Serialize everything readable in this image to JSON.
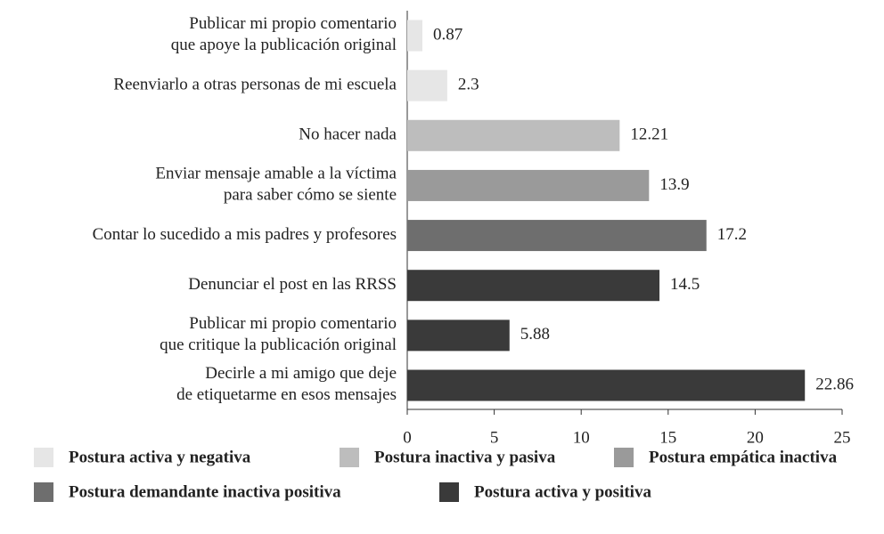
{
  "chart_data": {
    "type": "barh",
    "categories": [
      "Publicar mi propio comentario\nque apoye la publicación original",
      "Reenviarlo a otras personas de mi escuela",
      "No hacer nada",
      "Enviar mensaje amable a la víctima\npara saber cómo se siente",
      "Contar lo sucedido a mis padres y profesores",
      "Denunciar el post en las RRSS",
      "Publicar mi propio comentario\nque critique la publicación original",
      "Decirle a mi amigo que deje\nde etiquetarme en esos mensajes"
    ],
    "series": [
      {
        "name": "Postura activa y negativa",
        "color": "#e6e6e6",
        "values": [
          0.87,
          2.3,
          null,
          null,
          null,
          null,
          null,
          null
        ]
      },
      {
        "name": "Postura inactiva y pasiva",
        "color": "#bdbdbd",
        "values": [
          null,
          null,
          12.21,
          null,
          null,
          null,
          null,
          null
        ]
      },
      {
        "name": "Postura empática inactiva",
        "color": "#9a9a9a",
        "values": [
          null,
          null,
          null,
          13.9,
          null,
          null,
          null,
          null
        ]
      },
      {
        "name": "Postura demandante inactiva positiva",
        "color": "#6e6e6e",
        "values": [
          null,
          null,
          null,
          null,
          17.2,
          null,
          null,
          null
        ]
      },
      {
        "name": "Postura activa y positiva",
        "color": "#3a3a3a",
        "values": [
          null,
          null,
          null,
          null,
          null,
          14.5,
          5.88,
          22.86
        ]
      }
    ],
    "xlim": [
      0,
      25
    ],
    "xticks": [
      0,
      5,
      10,
      15,
      20,
      25
    ]
  }
}
